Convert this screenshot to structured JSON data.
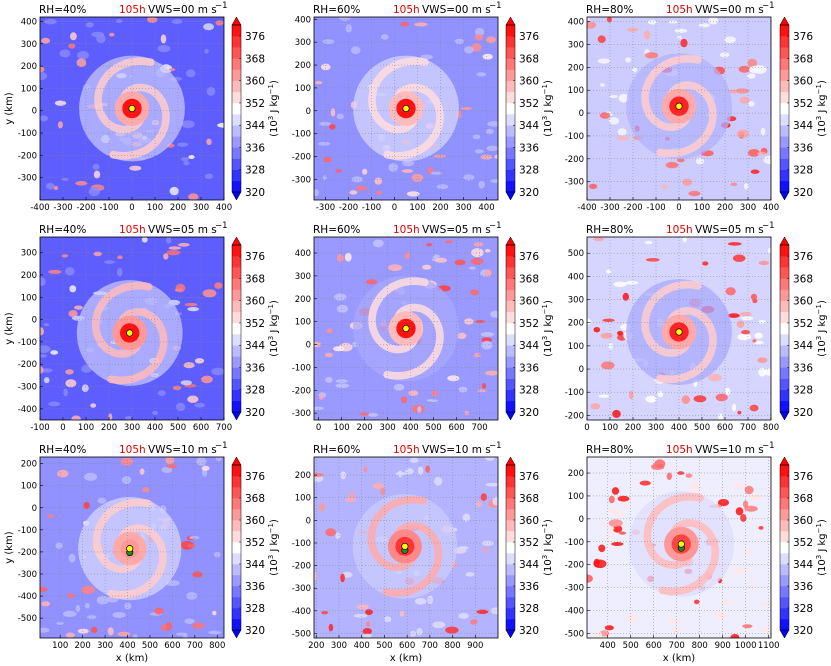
{
  "chart_data": {
    "type": "heatmap",
    "colorbar": {
      "label": "(10³ J kg⁻¹)",
      "label_parts": [
        "(10",
        "3",
        " J kg",
        "−1",
        ")"
      ],
      "ticks": [
        320,
        328,
        336,
        344,
        352,
        360,
        368,
        376
      ],
      "range": [
        320,
        380
      ]
    },
    "colors": {
      "low": "#0000ff",
      "mid": "#ffffff",
      "high": "#ff0000",
      "marker_yellow": "#ffff00",
      "marker_green": "#228b22",
      "time_red": "#e00000"
    },
    "x_label": "x (km)",
    "y_label": "y (km)",
    "panels": [
      {
        "rh": "RH=40%",
        "time": "105h",
        "vws": "VWS=00 m s",
        "vws_exp": "−1",
        "xlim": [
          -400,
          400
        ],
        "ylim": [
          -400,
          420
        ],
        "xticks": [
          -400,
          -300,
          -200,
          -100,
          0,
          100,
          200,
          300,
          400
        ],
        "yticks": [
          -300,
          -200,
          -100,
          0,
          100,
          200,
          300,
          400
        ],
        "center": [
          0,
          10
        ],
        "env": 331,
        "core": 378,
        "spiral": 356,
        "ring": 343,
        "show_x": false,
        "show_y": true
      },
      {
        "rh": "RH=60%",
        "time": "105h",
        "vws": "VWS=00 m s",
        "vws_exp": "−1",
        "xlim": [
          -350,
          450
        ],
        "ylim": [
          -390,
          410
        ],
        "xticks": [
          -300,
          -200,
          -100,
          0,
          100,
          200,
          300,
          400
        ],
        "yticks": [
          -300,
          -200,
          -100,
          0,
          100,
          200,
          300,
          400
        ],
        "center": [
          50,
          10
        ],
        "env": 337,
        "core": 378,
        "spiral": 354,
        "ring": 345,
        "show_x": false,
        "show_y": false
      },
      {
        "rh": "RH=80%",
        "time": "105h",
        "vws": "VWS=00 m s",
        "vws_exp": "−1",
        "xlim": [
          -400,
          400
        ],
        "ylim": [
          -380,
          420
        ],
        "xticks": [
          -400,
          -300,
          -200,
          -100,
          0,
          100,
          200,
          300,
          400
        ],
        "yticks": [
          -300,
          -200,
          -100,
          0,
          100,
          200,
          300,
          400
        ],
        "center": [
          0,
          30
        ],
        "env": 344,
        "core": 376,
        "spiral": 356,
        "ring": 341,
        "show_x": false,
        "show_y": false
      },
      {
        "rh": "RH=40%",
        "time": "105h",
        "vws": "VWS=05 m s",
        "vws_exp": "−1",
        "xlim": [
          -100,
          700
        ],
        "ylim": [
          -450,
          370
        ],
        "xticks": [
          -100,
          0,
          100,
          200,
          300,
          400,
          500,
          600,
          700
        ],
        "yticks": [
          -400,
          -300,
          -200,
          -100,
          0,
          100,
          200,
          300
        ],
        "center": [
          290,
          -60
        ],
        "env": 331,
        "core": 378,
        "spiral": 358,
        "ring": 343,
        "show_x": false,
        "show_y": true
      },
      {
        "rh": "RH=60%",
        "time": "105h",
        "vws": "VWS=05 m s",
        "vws_exp": "−1",
        "xlim": [
          -20,
          780
        ],
        "ylim": [
          -330,
          470
        ],
        "xticks": [
          0,
          100,
          200,
          300,
          400,
          500,
          600,
          700
        ],
        "yticks": [
          -300,
          -200,
          -100,
          0,
          100,
          200,
          300,
          400
        ],
        "center": [
          380,
          70
        ],
        "env": 338,
        "core": 378,
        "spiral": 354,
        "ring": 340,
        "show_x": false,
        "show_y": false
      },
      {
        "rh": "RH=80%",
        "time": "105h",
        "vws": "VWS=05 m s",
        "vws_exp": "−1",
        "xlim": [
          0,
          800
        ],
        "ylim": [
          -220,
          570
        ],
        "xticks": [
          0,
          100,
          200,
          300,
          400,
          500,
          600,
          700,
          800
        ],
        "yticks": [
          -200,
          -100,
          0,
          100,
          200,
          300,
          400,
          500
        ],
        "center": [
          400,
          160
        ],
        "env": 345,
        "core": 376,
        "spiral": 356,
        "ring": 340,
        "show_x": false,
        "show_y": false
      },
      {
        "rh": "RH=40%",
        "time": "105h",
        "vws": "VWS=10 m s",
        "vws_exp": "−1",
        "xlim": [
          10,
          830
        ],
        "ylim": [
          -590,
          230
        ],
        "xticks": [
          100,
          200,
          300,
          400,
          500,
          600,
          700,
          800
        ],
        "yticks": [
          -500,
          -400,
          -300,
          -200,
          -100,
          0,
          100,
          200
        ],
        "center": [
          410,
          -185
        ],
        "env": 337,
        "core": 362,
        "spiral": 356,
        "ring": 345,
        "show_x": true,
        "show_y": true
      },
      {
        "rh": "RH=60%",
        "time": "105h",
        "vws": "VWS=10 m s",
        "vws_exp": "−1",
        "xlim": [
          190,
          1000
        ],
        "ylim": [
          -520,
          280
        ],
        "xticks": [
          200,
          300,
          400,
          500,
          600,
          700,
          800,
          900
        ],
        "yticks": [
          -500,
          -400,
          -300,
          -200,
          -100,
          0,
          100,
          200
        ],
        "center": [
          590,
          -115
        ],
        "env": 341,
        "core": 374,
        "spiral": 360,
        "ring": 344,
        "show_x": true,
        "show_y": false
      },
      {
        "rh": "RH=80%",
        "time": "105h",
        "vws": "VWS=10 m s",
        "vws_exp": "−1",
        "xlim": [
          310,
          1110
        ],
        "ylim": [
          -520,
          270
        ],
        "xticks": [
          400,
          500,
          600,
          700,
          800,
          900,
          1000,
          1100
        ],
        "yticks": [
          -500,
          -400,
          -300,
          -200,
          -100,
          0,
          100,
          200
        ],
        "center": [
          720,
          -110
        ],
        "env": 348,
        "core": 372,
        "spiral": 358,
        "ring": 346,
        "show_x": true,
        "show_y": false
      }
    ]
  }
}
